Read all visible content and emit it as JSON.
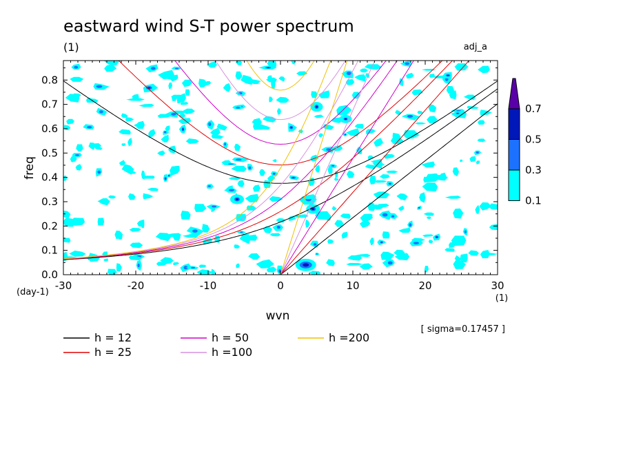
{
  "title": "eastward wind S-T power spectrum",
  "subtitle_left": "(1)",
  "subtitle_right": "adj_a",
  "sigma_note": "[ sigma=0.17457 ]",
  "x_unit_label": "(1)",
  "y_unit_label": "(day-1)",
  "colors": {
    "level_01": "#00ffff",
    "level_03": "#1c72ff",
    "level_05": "#0018b8",
    "level_07": "#5a00a8",
    "h12": "#000000",
    "h25": "#e00000",
    "h50": "#d000c8",
    "h100": "#d890e0",
    "h200": "#f0c000"
  },
  "chart_data": {
    "type": "heatmap",
    "title": "eastward wind S-T power spectrum",
    "xlabel": "wvn",
    "ylabel": "freq",
    "xlim": [
      -30,
      30
    ],
    "ylim": [
      0,
      0.88
    ],
    "x_ticks": [
      "-30",
      "-20",
      "-10",
      "0",
      "10",
      "20",
      "30"
    ],
    "y_ticks": [
      "0.0",
      "0.1",
      "0.2",
      "0.3",
      "0.4",
      "0.5",
      "0.6",
      "0.7",
      "0.8"
    ],
    "colorbar": {
      "levels": [
        "0.1",
        "0.3",
        "0.5",
        "0.7"
      ],
      "colors": [
        "#00ffff",
        "#1c72ff",
        "#0018b8",
        "#5a00a8"
      ]
    },
    "dispersion_curves": [
      {
        "name": "h = 12",
        "color": "#000000"
      },
      {
        "name": "h = 25",
        "color": "#e00000"
      },
      {
        "name": "h = 50",
        "color": "#d000c8"
      },
      {
        "name": "h =100",
        "color": "#d890e0"
      },
      {
        "name": "h =200",
        "color": "#f0c000"
      }
    ],
    "legend_position": "bottom"
  }
}
